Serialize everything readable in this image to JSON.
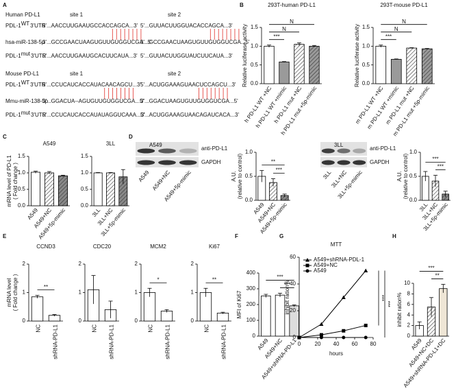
{
  "panel_labels": [
    "A",
    "B",
    "C",
    "D",
    "E",
    "F",
    "G",
    "H"
  ],
  "sequence_panel": {
    "groups": [
      {
        "title": "Human PD-L1",
        "sites": [
          "site 1",
          "site 2"
        ],
        "rows": [
          {
            "label": "PDL-1",
            "sup": "WT",
            "label_end": "3'UTR",
            "seqs": [
              [
                "5'...AACCUUGAAUGC",
                "CACCAGCA",
                "...3'"
              ],
              [
                "5'...GUUACUUGGUA",
                "CACCAGCA",
                "...3'"
              ]
            ]
          },
          {
            "label": "hsa-miR-138-5p",
            "seqs": [
              [
                "3'...GCCGAACUAAGUGUU",
                "GUGGUCGA",
                "...5'"
              ],
              [
                "3'...GCCGAACUAAGUGUU",
                "GUGGUCGA",
                "...5'"
              ]
            ]
          },
          {
            "label": "PDL-1",
            "sup": "mut",
            "label_end": "3'UTR",
            "seqs": [
              [
                "5'...AACCUUGAAUGC",
                "ACUUCAUA",
                "...3'"
              ],
              [
                "5'...GUUACUUGGUA",
                "UCUUCAUA",
                "...3'"
              ]
            ]
          }
        ]
      },
      {
        "title": "Mouse PD-L1",
        "sites": [
          "site 1",
          "site 2"
        ],
        "rows": [
          {
            "label": "PDL-1",
            "sup": "WT",
            "label_end": "3'UTR",
            "seqs": [
              [
                "5'...CCUCAUCACCAUA",
                "CAACAGCU",
                "...3'"
              ],
              [
                "5'...ACUGGAAAGUA",
                "ACUCCAGCU",
                "...3'"
              ]
            ]
          },
          {
            "label": "Mmu-miR-138-5p",
            "seqs": [
              [
                "3'...GGACUA--AGUGUU",
                "GUGGUCGA",
                "...5'"
              ],
              [
                "3'...GGACUAAGUGUU",
                "GUGGUCGA",
                "...5'"
              ]
            ]
          },
          {
            "label": "PDL-1",
            "sup": "mut",
            "label_end": "3'UTR",
            "seqs": [
              [
                "5'...CCUCAUCACCAUA",
                "UAGGUCAAA",
                "...3'"
              ],
              [
                "5'...ACUGGAAAGUA",
                "ACAGAUCACA",
                "...3'"
              ]
            ]
          }
        ]
      }
    ]
  },
  "blots": [
    {
      "title": "A549",
      "bands": [
        "anti-PD-L1",
        "GAPDH"
      ],
      "lanes": [
        "A549",
        "A549+NC",
        "A549+5p-mimic"
      ]
    },
    {
      "title": "3LL",
      "bands": [
        "anti-PD-L1",
        "GAPDH"
      ],
      "lanes": [
        "3LL",
        "3LL+NC",
        "3LL+5p-mimic"
      ]
    }
  ],
  "chart_data": [
    {
      "type": "bar",
      "title": "293T-human PD-L1",
      "ylabel": [
        "Relative luciferase activity"
      ],
      "categories": [
        "h PD-L1 WT +NC",
        "h PD-L1 WT +mimic",
        "h PD-L1 mut +NC",
        "h PD-L1 mut +5p-mimic"
      ],
      "values": [
        1.0,
        0.58,
        1.05,
        1.0
      ],
      "errors": [
        0.03,
        0.01,
        0.04,
        0.02
      ],
      "colors": [
        "#ffffff",
        "#9a9a9a",
        "#ffffff",
        "#9a9a9a"
      ],
      "hatched": [
        false,
        false,
        true,
        true
      ],
      "ylim": [
        0,
        1.5
      ],
      "yticks": [
        {
          "value": 0,
          "label": "0.0"
        },
        {
          "value": 0.5,
          "label": "0.5"
        },
        {
          "value": 1,
          "label": "1.0"
        },
        {
          "value": 1.5,
          "label": "1.5"
        }
      ],
      "significance": [
        {
          "from": 0,
          "to": 1,
          "label": "***"
        },
        {
          "from": 0,
          "to": 2,
          "label": "N"
        },
        {
          "from": 0,
          "to": 3,
          "label": "N"
        }
      ]
    },
    {
      "type": "bar",
      "title": "293T-mouse PD-L1",
      "ylabel": [
        "Relative luciferase activity"
      ],
      "categories": [
        "m PD-L1 WT +NC",
        "m PD-L1 WT +mimic",
        "m PD-L1 mut +NC",
        "m PD-L1 mut +5p-mimic"
      ],
      "values": [
        1.0,
        0.65,
        0.95,
        0.93
      ],
      "errors": [
        0.03,
        0.01,
        0.01,
        0.01
      ],
      "colors": [
        "#ffffff",
        "#9a9a9a",
        "#ffffff",
        "#9a9a9a"
      ],
      "hatched": [
        false,
        false,
        true,
        true
      ],
      "ylim": [
        0,
        1.5
      ],
      "yticks": [
        {
          "value": 0,
          "label": "0.0"
        },
        {
          "value": 0.5,
          "label": "0.5"
        },
        {
          "value": 1,
          "label": "1.0"
        },
        {
          "value": 1.5,
          "label": "1.5"
        }
      ],
      "significance": [
        {
          "from": 0,
          "to": 1,
          "label": "***"
        },
        {
          "from": 0,
          "to": 2,
          "label": "N"
        },
        {
          "from": 0,
          "to": 3,
          "label": "N"
        }
      ]
    },
    {
      "type": "bar",
      "title": "A549",
      "ylabel": [
        "mRNA level of PD-L1",
        "( Fold change )"
      ],
      "categories": [
        "A549",
        "A549+NC",
        "A549+5p-mimic"
      ],
      "values": [
        1.02,
        1.0,
        0.91
      ],
      "errors": [
        0.03,
        0.04,
        0.02
      ],
      "colors": [
        "#ffffff",
        "#ffffff",
        "#888888"
      ],
      "hatched": [
        false,
        true,
        true
      ],
      "ylim": [
        0,
        1.5
      ],
      "yticks": [
        {
          "value": 0,
          "label": "0.0"
        },
        {
          "value": 0.5,
          "label": "0.5"
        },
        {
          "value": 1,
          "label": "1.0"
        },
        {
          "value": 1.5,
          "label": "1.5"
        }
      ]
    },
    {
      "type": "bar",
      "title": "3LL",
      "categories": [
        "3LL",
        "3LL+NC",
        "3LL+5p-mimic"
      ],
      "values": [
        1.0,
        1.0,
        0.88
      ],
      "errors": [
        0.01,
        0.01,
        0.22
      ],
      "colors": [
        "#ffffff",
        "#ffffff",
        "#888888"
      ],
      "hatched": [
        false,
        true,
        true
      ],
      "ylim": [
        0,
        1.5
      ],
      "yticks": [
        {
          "value": 0,
          "label": "0.0"
        },
        {
          "value": 0.5,
          "label": "0.5"
        },
        {
          "value": 1,
          "label": "1.0"
        },
        {
          "value": 1.5,
          "label": "1.5"
        }
      ]
    },
    {
      "type": "bar",
      "ylabel": [
        "A.U.",
        "(relative to control)"
      ],
      "categories": [
        "A549",
        "A549+NC",
        "A549+5p-mimic"
      ],
      "values": [
        0.5,
        0.37,
        0.1
      ],
      "errors": [
        0.12,
        0.08,
        0.03
      ],
      "colors": [
        "#ffffff",
        "#ffffff",
        "#888888"
      ],
      "hatched": [
        false,
        true,
        true
      ],
      "ylim": [
        0,
        1.0
      ],
      "yticks": [
        {
          "value": 0,
          "label": "0.0"
        },
        {
          "value": 0.5,
          "label": "0.5"
        },
        {
          "value": 1,
          "label": "1.0"
        }
      ],
      "significance": [
        {
          "from": 1,
          "to": 2,
          "label": "***"
        },
        {
          "from": 0,
          "to": 2,
          "label": "**"
        }
      ]
    },
    {
      "type": "bar",
      "ylabel": [
        "A.U.",
        "(relative to control)"
      ],
      "categories": [
        "3LL",
        "3LL+NC",
        "3LL+5p-mimic"
      ],
      "values": [
        0.5,
        0.4,
        0.13
      ],
      "errors": [
        0.1,
        0.12,
        0.06
      ],
      "colors": [
        "#ffffff",
        "#ffffff",
        "#888888"
      ],
      "hatched": [
        false,
        true,
        true
      ],
      "ylim": [
        0,
        1.0
      ],
      "yticks": [
        {
          "value": 0,
          "label": "0.0"
        },
        {
          "value": 0.5,
          "label": "0.5"
        },
        {
          "value": 1,
          "label": "1.0"
        }
      ],
      "significance": [
        {
          "from": 1,
          "to": 2,
          "label": "***"
        },
        {
          "from": 0,
          "to": 2,
          "label": "***"
        }
      ]
    },
    {
      "type": "bar",
      "title": "CCND3",
      "ylabel": [
        "mRNA level",
        "( Fold change )"
      ],
      "categories": [
        "NC",
        "shRNA-PD-L1"
      ],
      "values": [
        0.85,
        0.2
      ],
      "errors": [
        0.05,
        0.03
      ],
      "colors": [
        "#ffffff",
        "#ffffff"
      ],
      "hatched": [
        false,
        false
      ],
      "ylim": [
        0,
        2
      ],
      "yticks": [
        0,
        1,
        2
      ],
      "significance": [
        {
          "from": 0,
          "to": 1,
          "label": "**"
        }
      ]
    },
    {
      "type": "bar",
      "title": "CDC20",
      "categories": [
        "NC",
        "shRNA-PD-L1"
      ],
      "values": [
        1.1,
        0.4
      ],
      "errors": [
        0.5,
        0.3
      ],
      "colors": [
        "#ffffff",
        "#ffffff"
      ],
      "hatched": [
        false,
        false
      ],
      "ylim": [
        0,
        2
      ],
      "yticks": [
        0,
        1,
        2
      ]
    },
    {
      "type": "bar",
      "title": "MCM2",
      "categories": [
        "NC",
        "shRNA-PD-L1"
      ],
      "values": [
        1.0,
        0.35
      ],
      "errors": [
        0.15,
        0.05
      ],
      "colors": [
        "#ffffff",
        "#ffffff"
      ],
      "hatched": [
        false,
        false
      ],
      "ylim": [
        0,
        2
      ],
      "yticks": [
        0,
        1,
        2
      ],
      "significance": [
        {
          "from": 0,
          "to": 1,
          "label": "*"
        }
      ]
    },
    {
      "type": "bar",
      "title": "Ki67",
      "categories": [
        "NC",
        "shRNA-PD-L1"
      ],
      "values": [
        1.0,
        0.28
      ],
      "errors": [
        0.15,
        0.03
      ],
      "colors": [
        "#ffffff",
        "#ffffff"
      ],
      "hatched": [
        false,
        false
      ],
      "ylim": [
        0,
        2
      ],
      "yticks": [
        0,
        1,
        2
      ],
      "significance": [
        {
          "from": 0,
          "to": 1,
          "label": "**"
        }
      ]
    },
    {
      "type": "bar",
      "ylabel": [
        "MFI of Ki67"
      ],
      "categories": [
        "A549",
        "A549+NC",
        "A549+shRNA-PD-L1"
      ],
      "values": [
        255,
        260,
        192
      ],
      "errors": [
        10,
        12,
        6
      ],
      "colors": [
        "#ffffff",
        "#ffffff",
        "#dddddd"
      ],
      "hatched": [
        false,
        false,
        false
      ],
      "ylim": [
        0,
        400
      ],
      "yticks": [
        0,
        100,
        200,
        300,
        400
      ],
      "significance": [
        {
          "from": 1,
          "to": 2,
          "label": "***"
        },
        {
          "from": 0,
          "to": 2,
          "label": "***"
        }
      ]
    },
    {
      "type": "line",
      "title": "MTT",
      "xlabel": "hours",
      "ylabel": [
        "inhibit ration%"
      ],
      "x": [
        0,
        24,
        48,
        72
      ],
      "xlim": [
        0,
        80
      ],
      "xticks": [
        0,
        20,
        40,
        60,
        80
      ],
      "ylim": [
        0,
        60
      ],
      "yticks": [
        0,
        20,
        40,
        60
      ],
      "series": [
        {
          "name": "A549+shRNA-PDL-1",
          "color": "#000000",
          "marker": "triangle",
          "values": [
            0,
            10,
            30,
            50
          ]
        },
        {
          "name": "A549+NC",
          "color": "#000000",
          "marker": "square",
          "values": [
            0,
            2,
            5,
            9
          ]
        },
        {
          "name": "A549",
          "color": "#000000",
          "marker": "circle",
          "values": [
            0,
            0,
            0,
            0
          ]
        }
      ],
      "significance": [
        {
          "from": 0,
          "to": 1,
          "label": "***"
        },
        {
          "from": 0,
          "to": 2,
          "label": "***"
        }
      ]
    },
    {
      "type": "bar",
      "ylabel": [
        "inhibit ration%"
      ],
      "categories": [
        "A549",
        "A549+NC+DC",
        "A549+shRNA-PD-L1+DC"
      ],
      "values": [
        2,
        5.5,
        9
      ],
      "errors": [
        0.7,
        1.8,
        0.8
      ],
      "colors": [
        "#ffffff",
        "#ffffff",
        "#efe6d6"
      ],
      "hatched": [
        false,
        true,
        false
      ],
      "ylim": [
        0,
        10
      ],
      "yticks": [
        0,
        2,
        4,
        6,
        8,
        10
      ],
      "significance": [
        {
          "from": 1,
          "to": 2,
          "label": "**"
        },
        {
          "from": 0,
          "to": 2,
          "label": "***"
        }
      ]
    }
  ]
}
